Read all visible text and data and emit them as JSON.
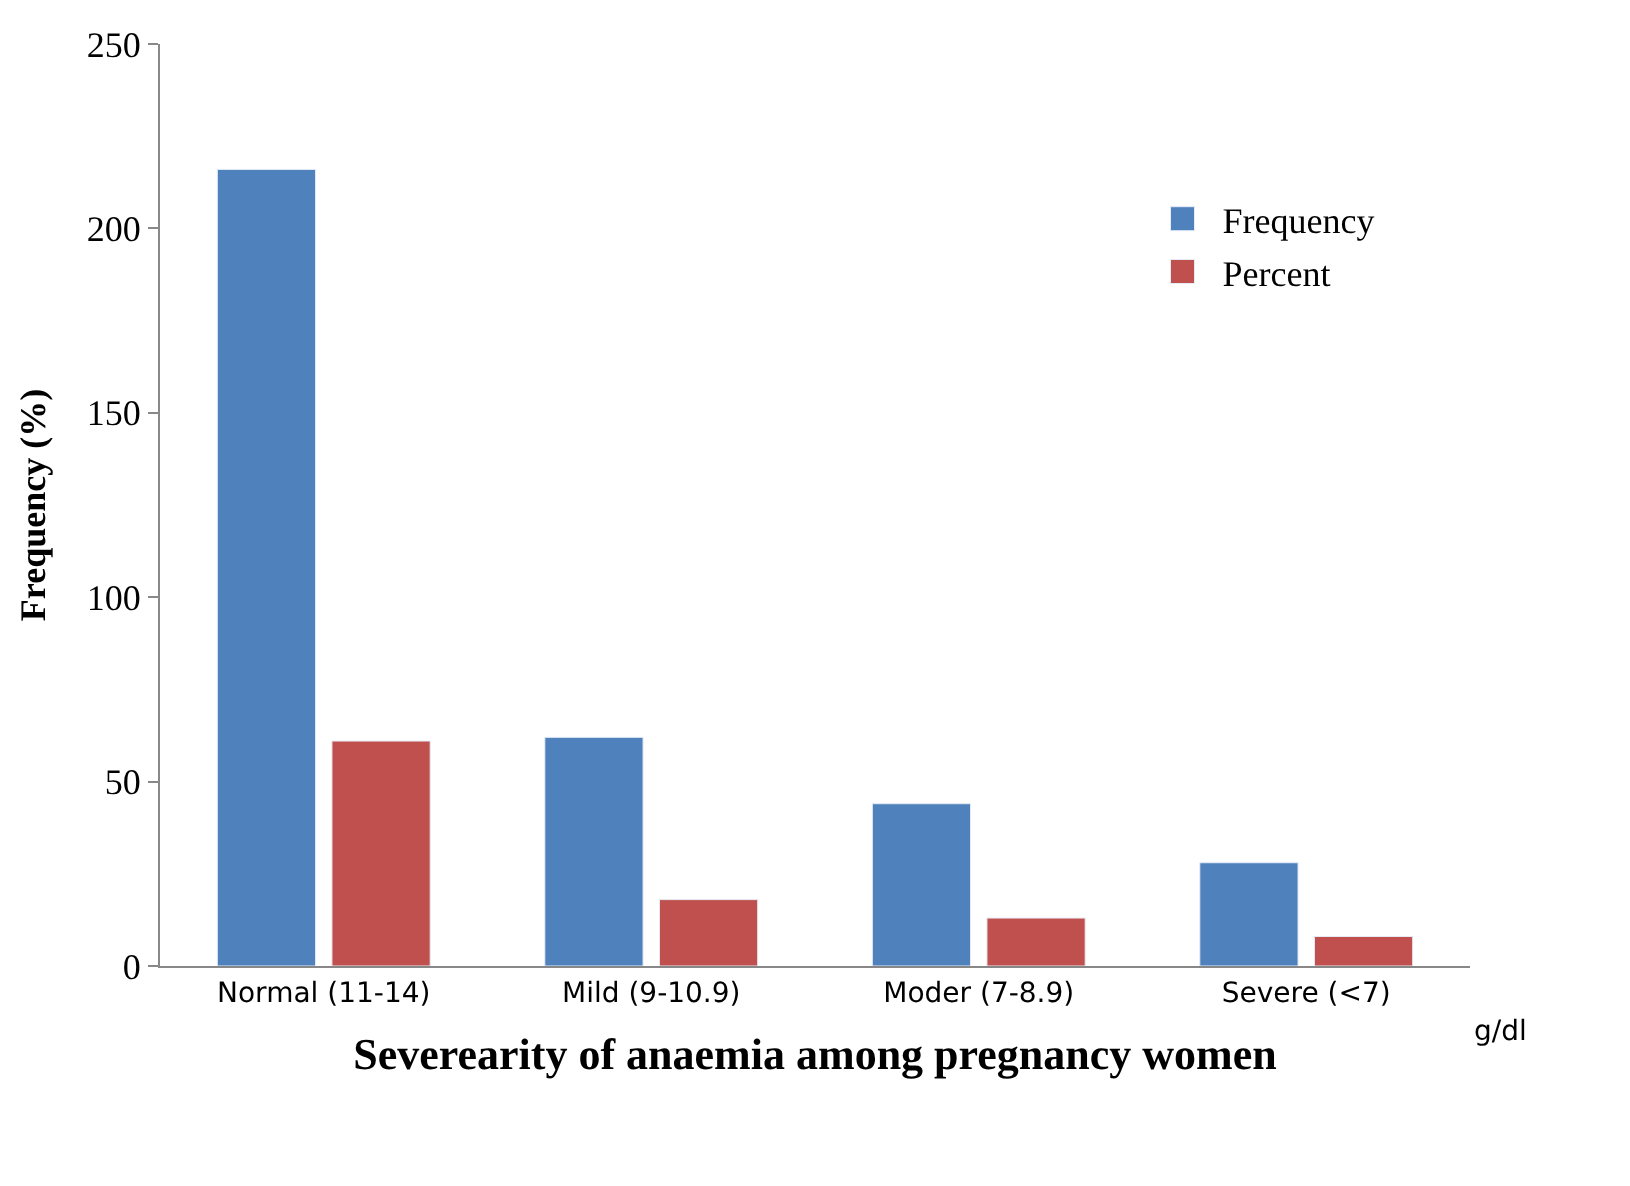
{
  "chart_data": {
    "type": "bar",
    "xlabel": "Severearity of anaemia among pregnancy women",
    "ylabel": "Frequency (%)",
    "categories": [
      "Normal (11-14)",
      "Mild (9-10.9)",
      "Moder (7-8.9)",
      "Severe (<7)"
    ],
    "series": [
      {
        "name": "Frequency",
        "color": "#4f81bd",
        "values": [
          216,
          62,
          44,
          28
        ]
      },
      {
        "name": "Percent",
        "color": "#c0504d",
        "values": [
          61,
          18,
          13,
          8
        ]
      }
    ],
    "ylim": [
      0,
      250
    ],
    "yticks": [
      0,
      50,
      100,
      150,
      200,
      250
    ],
    "legend": "top right",
    "annotations": [
      "g/dl"
    ]
  }
}
